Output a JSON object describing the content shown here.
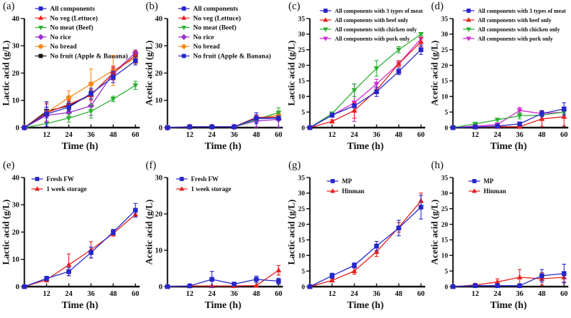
{
  "figure_title": "",
  "chart_data": [
    {
      "type": "line",
      "panel": "(a)",
      "xlabel": "Time (h)",
      "ylabel": "Lactic acid (g/L)",
      "x": [
        0,
        12,
        24,
        36,
        48,
        60
      ],
      "xticks": [
        12,
        24,
        36,
        48,
        60
      ],
      "ylim": [
        0,
        40
      ],
      "ystep": 10,
      "legend_position": "top-left-inside",
      "legend_xy": [
        57,
        12
      ],
      "legend_dy": 13.3,
      "legend_fs": 9.5,
      "series": [
        {
          "name": "All components",
          "color": "#2626cb",
          "marker": "square",
          "values": [
            0,
            5,
            7.5,
            12.5,
            18.5,
            24.5
          ],
          "errors": [
            0.3,
            4.5,
            1.5,
            2,
            2,
            1.5
          ]
        },
        {
          "name": "No veg (Lettuce)",
          "color": "#e6211f",
          "marker": "triangle-up",
          "values": [
            0,
            5.5,
            8.5,
            12,
            20,
            26.5
          ],
          "errors": [
            0.3,
            3.5,
            1.5,
            2,
            2.5,
            1.5
          ]
        },
        {
          "name": "No meat (Beef)",
          "color": "#2db135",
          "marker": "triangle-down",
          "values": [
            0,
            1.5,
            3.5,
            6,
            10.5,
            15.5
          ],
          "errors": [
            0.2,
            0.5,
            1.5,
            2.5,
            1,
            1.5
          ]
        },
        {
          "name": "No rice",
          "color": "#9b30cf",
          "marker": "diamond",
          "values": [
            0,
            4.5,
            5.5,
            8,
            20,
            27.5
          ],
          "errors": [
            0.2,
            1,
            1.5,
            3.5,
            2,
            1
          ]
        },
        {
          "name": "No bread",
          "color": "#f78a1e",
          "marker": "circle",
          "values": [
            0,
            5.5,
            11,
            16,
            21,
            25.5
          ],
          "errors": [
            0.3,
            3,
            2.5,
            5.5,
            5.5,
            2
          ]
        },
        {
          "name": "No fruit (Apple & Banana)",
          "color": "#141414",
          "marker": "square",
          "values": [
            0,
            6,
            8,
            12,
            20,
            26.5
          ],
          "errors": [
            0.3,
            1.5,
            1.5,
            1.5,
            2.5,
            1.5
          ]
        }
      ]
    },
    {
      "type": "line",
      "panel": "(b)",
      "xlabel": "Time (h)",
      "ylabel": "Acetic acid (g/L)",
      "x": [
        0,
        12,
        24,
        36,
        48,
        60
      ],
      "xticks": [
        12,
        24,
        36,
        48,
        60
      ],
      "ylim": [
        0,
        40
      ],
      "ystep": 10,
      "legend_position": "top-left-inside",
      "legend_xy": [
        57,
        12
      ],
      "legend_dy": 13.3,
      "legend_fs": 9.5,
      "series": [
        {
          "name": "All components",
          "color": "#2626cb",
          "marker": "square",
          "values": [
            0,
            0.3,
            0.3,
            0.3,
            3.5,
            3.5
          ],
          "errors": [
            0.1,
            0.1,
            0.1,
            0.1,
            2,
            0.6
          ]
        },
        {
          "name": "No veg (Lettuce)",
          "color": "#e6211f",
          "marker": "triangle-up",
          "values": [
            0,
            0.3,
            0.3,
            0.3,
            3.8,
            3.8
          ],
          "errors": [
            0.1,
            0.1,
            0.1,
            0.1,
            0.5,
            0.5
          ]
        },
        {
          "name": "No meat (Beef)",
          "color": "#2db135",
          "marker": "triangle-down",
          "values": [
            0,
            0.3,
            0.3,
            0.3,
            3,
            5.5
          ],
          "errors": [
            0.1,
            0.1,
            0.1,
            0.1,
            0.5,
            1.8
          ]
        },
        {
          "name": "No rice",
          "color": "#9b30cf",
          "marker": "diamond",
          "values": [
            0,
            0.3,
            0.3,
            0.3,
            2.5,
            3
          ],
          "errors": [
            0.1,
            0.1,
            0.1,
            0.1,
            2.3,
            2.8
          ]
        },
        {
          "name": "No bread",
          "color": "#f78a1e",
          "marker": "circle",
          "values": [
            0,
            0.3,
            0.3,
            0.3,
            3.5,
            4.5
          ],
          "errors": [
            0.1,
            0.1,
            0.1,
            0.1,
            1,
            1
          ]
        },
        {
          "name": "No fruit (Apple & Banana)",
          "color": "#2626cb",
          "marker": "square",
          "values": [
            0,
            0.3,
            0.3,
            0.3,
            3.3,
            3.5
          ],
          "errors": [
            0.1,
            0.1,
            0.1,
            0.1,
            1,
            0.5
          ]
        }
      ]
    },
    {
      "type": "line",
      "panel": "(c)",
      "xlabel": "Time (h)",
      "ylabel": "Lactic acid (g/L)",
      "x": [
        0,
        12,
        24,
        36,
        48,
        60
      ],
      "xticks": [
        12,
        24,
        36,
        48,
        60
      ],
      "ylim": [
        0,
        35
      ],
      "ystep": 5,
      "legend_position": "top-left-inside",
      "legend_xy": [
        56,
        15
      ],
      "legend_dy": 13,
      "legend_fs": 8,
      "series": [
        {
          "name": "All components with 3 types of meat",
          "color": "#2626cb",
          "marker": "square",
          "values": [
            0,
            4,
            7,
            11.5,
            18,
            25
          ],
          "errors": [
            0.2,
            0.6,
            0.6,
            1.5,
            1,
            1.5
          ]
        },
        {
          "name": "All components with beef only",
          "color": "#e6211f",
          "marker": "triangle-up",
          "values": [
            0,
            2,
            5.5,
            12,
            20.5,
            27.5
          ],
          "errors": [
            0.2,
            0.5,
            2.5,
            1,
            1,
            1.5
          ]
        },
        {
          "name": "All components with chicken only",
          "color": "#2db135",
          "marker": "triangle-down",
          "values": [
            0,
            4.5,
            12,
            19,
            25,
            30
          ],
          "errors": [
            0.2,
            0.5,
            2,
            2.5,
            1,
            0.5
          ]
        },
        {
          "name": "All components with pork only",
          "color": "#cf2bcf",
          "marker": "triangle-down",
          "values": [
            0,
            4,
            8,
            14,
            20.5,
            28.5
          ],
          "errors": [
            0.2,
            0.5,
            6,
            1.5,
            1,
            1
          ]
        }
      ]
    },
    {
      "type": "line",
      "panel": "(d)",
      "xlabel": "Time (h)",
      "ylabel": "Acetic acid (g/L)",
      "x": [
        0,
        12,
        24,
        36,
        48,
        60
      ],
      "xticks": [
        12,
        24,
        36,
        48,
        60
      ],
      "ylim": [
        0,
        35
      ],
      "ystep": 5,
      "legend_position": "top-left-inside",
      "legend_xy": [
        56,
        15
      ],
      "legend_dy": 13,
      "legend_fs": 8,
      "series": [
        {
          "name": "All components with 3 types of meat",
          "color": "#2626cb",
          "marker": "square",
          "values": [
            0,
            0.2,
            0.5,
            1.2,
            4.5,
            6
          ],
          "errors": [
            0.1,
            0.3,
            0.3,
            0.6,
            1,
            2
          ]
        },
        {
          "name": "All components with beef only",
          "color": "#e6211f",
          "marker": "triangle-up",
          "values": [
            0,
            0.2,
            0.3,
            0.3,
            2.8,
            3.5
          ],
          "errors": [
            0.1,
            0.1,
            0.1,
            0.2,
            2.5,
            3
          ]
        },
        {
          "name": "All components with chicken only",
          "color": "#2db135",
          "marker": "triangle-down",
          "values": [
            0,
            1.2,
            2.5,
            3.8,
            4,
            5
          ],
          "errors": [
            0.1,
            0.3,
            0.4,
            1,
            0.5,
            0.6
          ]
        },
        {
          "name": "All components with pork only",
          "color": "#cf2bcf",
          "marker": "triangle-down",
          "values": [
            0,
            0.5,
            1,
            5.5,
            4.5,
            5
          ],
          "errors": [
            0.1,
            0.3,
            0.5,
            1,
            0.6,
            0.6
          ]
        }
      ]
    },
    {
      "type": "line",
      "panel": "(e)",
      "xlabel": "Time (h)",
      "ylabel": "Lactic acid (g/L)",
      "x": [
        0,
        12,
        24,
        36,
        48,
        60
      ],
      "xticks": [
        12,
        24,
        36,
        48,
        60
      ],
      "ylim": [
        0,
        40
      ],
      "ystep": 10,
      "legend_position": "top-left-inside",
      "legend_xy": [
        52,
        28
      ],
      "legend_dy": 14,
      "legend_fs": 9,
      "series": [
        {
          "name": "Fresh FW",
          "color": "#2626cb",
          "marker": "square",
          "values": [
            0,
            3,
            5.5,
            12.5,
            20,
            28
          ],
          "errors": [
            0.2,
            0.8,
            1.5,
            2,
            1,
            2.5
          ]
        },
        {
          "name": "1 week storage",
          "color": "#e6211f",
          "marker": "triangle-up",
          "values": [
            0,
            2.5,
            8,
            13.5,
            19.5,
            26.5
          ],
          "errors": [
            0.2,
            0.8,
            4,
            3,
            1,
            1
          ]
        }
      ]
    },
    {
      "type": "line",
      "panel": "(f)",
      "xlabel": "Time (h)",
      "ylabel": "Acetic acid (g/L)",
      "x": [
        0,
        12,
        24,
        36,
        48,
        60
      ],
      "xticks": [
        12,
        24,
        36,
        48,
        60
      ],
      "ylim": [
        0,
        30
      ],
      "ystep": 10,
      "legend_position": "top-left-inside",
      "legend_xy": [
        54,
        28
      ],
      "legend_dy": 14,
      "legend_fs": 9,
      "series": [
        {
          "name": "Fresh FW",
          "color": "#2626cb",
          "marker": "square",
          "values": [
            0,
            0.2,
            2,
            0.7,
            2,
            1.5
          ],
          "errors": [
            0.1,
            0.1,
            2.2,
            0.4,
            0.9,
            0.8
          ]
        },
        {
          "name": "1 week storage",
          "color": "#e6211f",
          "marker": "triangle-up",
          "values": [
            0,
            0.2,
            0.2,
            0.2,
            0.3,
            4.5
          ],
          "errors": [
            0.1,
            0.1,
            0.1,
            0.1,
            0.2,
            1.3
          ]
        }
      ]
    },
    {
      "type": "line",
      "panel": "(g)",
      "xlabel": "Time (h)",
      "ylabel": "Lactic acid (g/L)",
      "x": [
        0,
        12,
        24,
        36,
        48,
        60
      ],
      "xticks": [
        12,
        24,
        36,
        48,
        60
      ],
      "ylim": [
        0,
        35
      ],
      "ystep": 5,
      "legend_position": "top-left-inside",
      "legend_xy": [
        66,
        31
      ],
      "legend_dy": 14,
      "legend_fs": 9,
      "series": [
        {
          "name": "MP",
          "color": "#2626cb",
          "marker": "square",
          "values": [
            0,
            3.5,
            6.8,
            13,
            18.8,
            25.5
          ],
          "errors": [
            0.2,
            0.8,
            0.8,
            1.5,
            2.5,
            3.8
          ]
        },
        {
          "name": "Hinman",
          "color": "#e6211f",
          "marker": "triangle-up",
          "values": [
            0,
            2,
            5,
            11.2,
            19,
            27.5
          ],
          "errors": [
            0.2,
            0.5,
            1,
            1.5,
            1.5,
            2.5
          ]
        }
      ]
    },
    {
      "type": "line",
      "panel": "(h)",
      "xlabel": "Time (h)",
      "ylabel": "Acetic acid (g/L)",
      "x": [
        0,
        12,
        24,
        36,
        48,
        60
      ],
      "xticks": [
        12,
        24,
        36,
        48,
        60
      ],
      "ylim": [
        0,
        35
      ],
      "ystep": 5,
      "legend_position": "top-left-inside",
      "legend_xy": [
        64,
        31
      ],
      "legend_dy": 14,
      "legend_fs": 9,
      "series": [
        {
          "name": "MP",
          "color": "#2626cb",
          "marker": "square",
          "values": [
            0,
            0.3,
            0.3,
            0.3,
            3.5,
            4.2
          ],
          "errors": [
            0.1,
            0.3,
            0.3,
            0.3,
            2,
            3
          ]
        },
        {
          "name": "Hinman",
          "color": "#e6211f",
          "marker": "triangle-up",
          "values": [
            0,
            0.5,
            1.5,
            3,
            2.5,
            3
          ],
          "errors": [
            0.1,
            0.5,
            1,
            2.5,
            2,
            1.5
          ]
        }
      ]
    }
  ]
}
